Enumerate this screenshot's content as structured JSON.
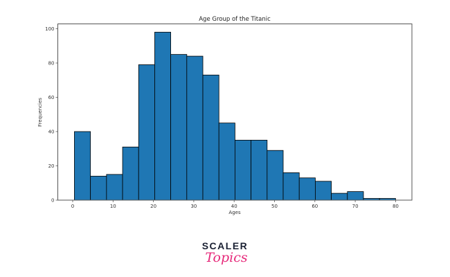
{
  "chart_data": {
    "type": "bar",
    "subtype": "histogram",
    "title": "Age Group of the Titanic",
    "xlabel": "Ages",
    "ylabel": "Frequencies",
    "xlim": [
      -3.6,
      84.0
    ],
    "ylim": [
      0,
      103
    ],
    "xticks": [
      0,
      10,
      20,
      30,
      40,
      50,
      60,
      70,
      80
    ],
    "yticks": [
      0,
      20,
      40,
      60,
      80,
      100
    ],
    "bin_start": 0.42,
    "bin_width": 3.979,
    "bin_edges": [
      0.42,
      4.4,
      8.38,
      12.36,
      16.34,
      20.32,
      24.29,
      28.27,
      32.25,
      36.23,
      40.21,
      44.19,
      48.17,
      52.15,
      56.13,
      60.11,
      64.08,
      68.06,
      72.04,
      76.02,
      80.0
    ],
    "values": [
      40,
      14,
      15,
      31,
      79,
      98,
      85,
      84,
      73,
      45,
      35,
      35,
      29,
      16,
      13,
      11,
      4,
      5,
      1,
      1
    ],
    "bar_color": "#1f77b4",
    "edge_color": "#000000",
    "grid": false,
    "legend": null
  },
  "branding": {
    "line1": "SCALER",
    "line2": "Topics"
  }
}
